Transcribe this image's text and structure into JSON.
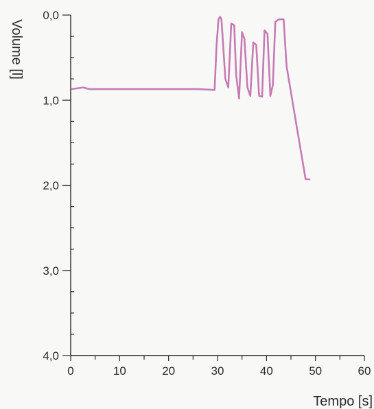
{
  "chart_data": {
    "type": "line",
    "xlabel": "Tempo [s]",
    "ylabel": "Volume [l]",
    "xlim": [
      0,
      60
    ],
    "ylim": [
      0,
      4
    ],
    "y_inverted": true,
    "grid": false,
    "x_ticks": [
      "0",
      "10",
      "20",
      "30",
      "40",
      "50",
      "60"
    ],
    "y_ticks": [
      "0,0",
      "1,0",
      "2,0",
      "3,0",
      "4,0"
    ],
    "line_color": "#c67bb4",
    "series": [
      {
        "x": [
          0.2,
          1.3,
          2.6,
          3.8,
          26.0,
          29.4,
          29.8,
          30.2,
          30.5,
          30.8,
          31.6,
          32.2,
          32.8,
          33.4,
          33.8,
          34.4,
          35.0,
          35.5,
          36.1,
          36.7,
          37.3,
          37.9,
          38.5,
          39.1,
          39.6,
          40.2,
          40.8,
          41.3,
          41.8,
          42.5,
          43.5,
          44.1,
          46.0,
          48.0,
          48.8
        ],
        "y": [
          0.87,
          0.86,
          0.85,
          0.87,
          0.87,
          0.88,
          0.35,
          0.05,
          0.02,
          0.05,
          0.75,
          0.85,
          0.1,
          0.12,
          0.7,
          0.98,
          0.2,
          0.28,
          0.85,
          0.95,
          0.32,
          0.35,
          0.95,
          0.96,
          0.18,
          0.22,
          0.95,
          0.82,
          0.08,
          0.05,
          0.05,
          0.6,
          1.25,
          1.93,
          1.93
        ]
      }
    ]
  }
}
